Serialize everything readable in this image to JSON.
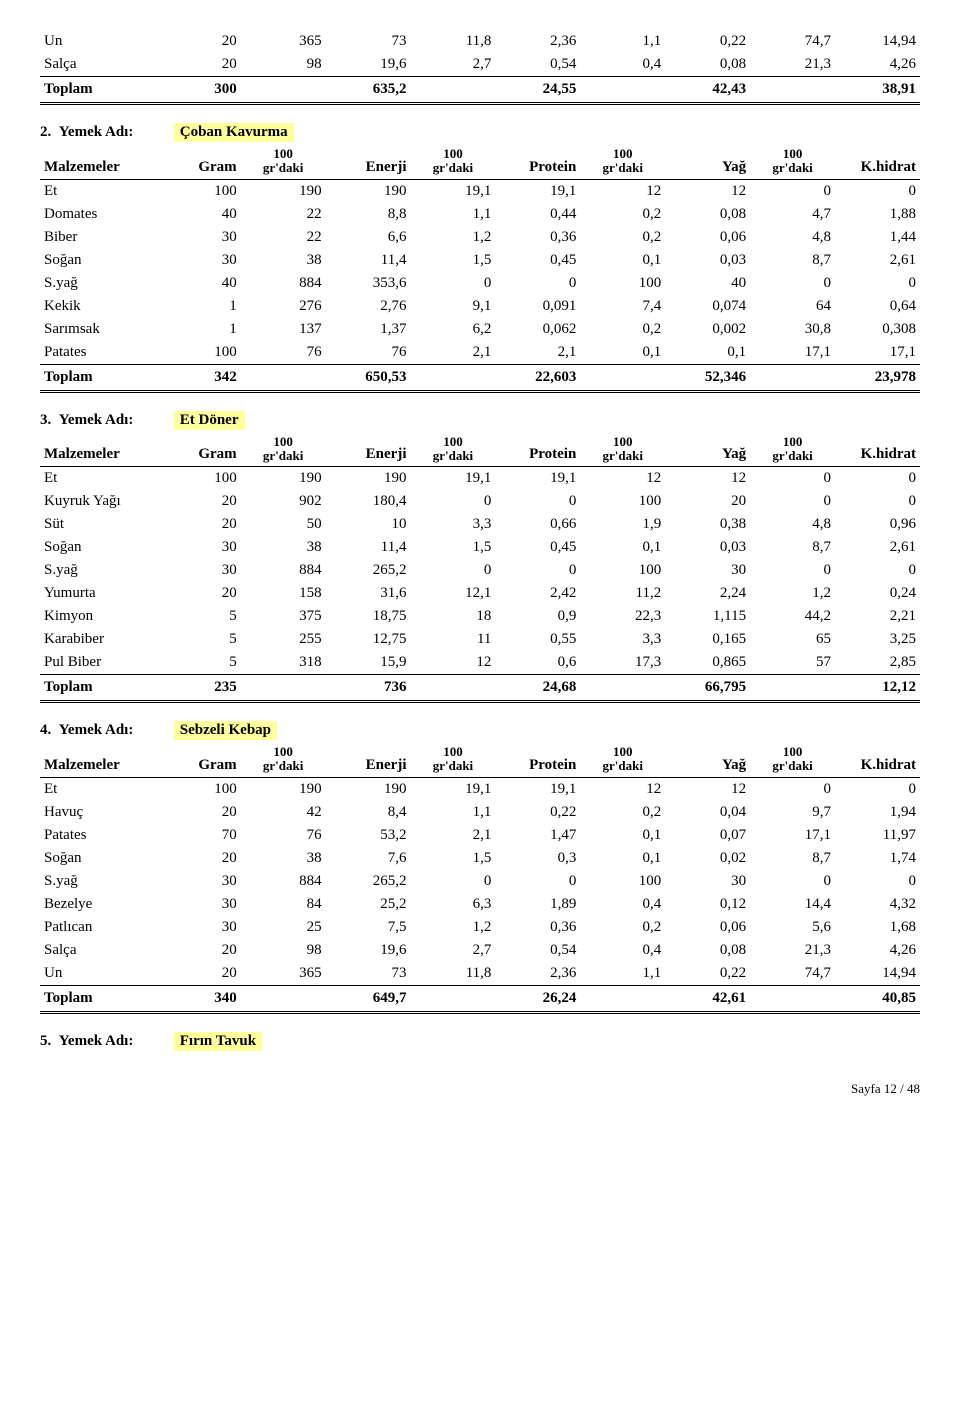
{
  "highlight_color": "#ffff9c",
  "header_labels": {
    "malzemeler": "Malzemeler",
    "gram": "Gram",
    "grdaki": "100 gr'daki",
    "enerji": "Enerji",
    "protein": "Protein",
    "yag": "Yağ",
    "khidrat": "K.hidrat"
  },
  "toplam_label": "Toplam",
  "yemek_adi_label": "Yemek Adı:",
  "top_table": {
    "rows": [
      {
        "name": "Un",
        "v": [
          "20",
          "365",
          "73",
          "11,8",
          "2,36",
          "1,1",
          "0,22",
          "74,7",
          "14,94"
        ]
      },
      {
        "name": "Salça",
        "v": [
          "20",
          "98",
          "19,6",
          "2,7",
          "0,54",
          "0,4",
          "0,08",
          "21,3",
          "4,26"
        ]
      }
    ],
    "total": {
      "gram": "300",
      "enerji": "635,2",
      "protein": "24,55",
      "yag": "42,43",
      "khidrat": "38,91"
    }
  },
  "sections": [
    {
      "num": "2.",
      "name": "Çoban Kavurma",
      "rows": [
        {
          "name": "Et",
          "v": [
            "100",
            "190",
            "190",
            "19,1",
            "19,1",
            "12",
            "12",
            "0",
            "0"
          ]
        },
        {
          "name": "Domates",
          "v": [
            "40",
            "22",
            "8,8",
            "1,1",
            "0,44",
            "0,2",
            "0,08",
            "4,7",
            "1,88"
          ]
        },
        {
          "name": "Biber",
          "v": [
            "30",
            "22",
            "6,6",
            "1,2",
            "0,36",
            "0,2",
            "0,06",
            "4,8",
            "1,44"
          ]
        },
        {
          "name": "Soğan",
          "v": [
            "30",
            "38",
            "11,4",
            "1,5",
            "0,45",
            "0,1",
            "0,03",
            "8,7",
            "2,61"
          ]
        },
        {
          "name": "S.yağ",
          "v": [
            "40",
            "884",
            "353,6",
            "0",
            "0",
            "100",
            "40",
            "0",
            "0"
          ]
        },
        {
          "name": "Kekik",
          "v": [
            "1",
            "276",
            "2,76",
            "9,1",
            "0,091",
            "7,4",
            "0,074",
            "64",
            "0,64"
          ]
        },
        {
          "name": "Sarımsak",
          "v": [
            "1",
            "137",
            "1,37",
            "6,2",
            "0,062",
            "0,2",
            "0,002",
            "30,8",
            "0,308"
          ]
        },
        {
          "name": "Patates",
          "v": [
            "100",
            "76",
            "76",
            "2,1",
            "2,1",
            "0,1",
            "0,1",
            "17,1",
            "17,1"
          ]
        }
      ],
      "total": {
        "gram": "342",
        "enerji": "650,53",
        "protein": "22,603",
        "yag": "52,346",
        "khidrat": "23,978"
      }
    },
    {
      "num": "3.",
      "name": "Et Döner",
      "rows": [
        {
          "name": "Et",
          "v": [
            "100",
            "190",
            "190",
            "19,1",
            "19,1",
            "12",
            "12",
            "0",
            "0"
          ]
        },
        {
          "name": "Kuyruk Yağı",
          "v": [
            "20",
            "902",
            "180,4",
            "0",
            "0",
            "100",
            "20",
            "0",
            "0"
          ]
        },
        {
          "name": "Süt",
          "v": [
            "20",
            "50",
            "10",
            "3,3",
            "0,66",
            "1,9",
            "0,38",
            "4,8",
            "0,96"
          ]
        },
        {
          "name": "Soğan",
          "v": [
            "30",
            "38",
            "11,4",
            "1,5",
            "0,45",
            "0,1",
            "0,03",
            "8,7",
            "2,61"
          ]
        },
        {
          "name": "S.yağ",
          "v": [
            "30",
            "884",
            "265,2",
            "0",
            "0",
            "100",
            "30",
            "0",
            "0"
          ]
        },
        {
          "name": "Yumurta",
          "v": [
            "20",
            "158",
            "31,6",
            "12,1",
            "2,42",
            "11,2",
            "2,24",
            "1,2",
            "0,24"
          ]
        },
        {
          "name": "Kimyon",
          "v": [
            "5",
            "375",
            "18,75",
            "18",
            "0,9",
            "22,3",
            "1,115",
            "44,2",
            "2,21"
          ]
        },
        {
          "name": "Karabiber",
          "v": [
            "5",
            "255",
            "12,75",
            "11",
            "0,55",
            "3,3",
            "0,165",
            "65",
            "3,25"
          ]
        },
        {
          "name": "Pul Biber",
          "v": [
            "5",
            "318",
            "15,9",
            "12",
            "0,6",
            "17,3",
            "0,865",
            "57",
            "2,85"
          ]
        }
      ],
      "total": {
        "gram": "235",
        "enerji": "736",
        "protein": "24,68",
        "yag": "66,795",
        "khidrat": "12,12"
      }
    },
    {
      "num": "4.",
      "name": "Sebzeli Kebap",
      "rows": [
        {
          "name": "Et",
          "v": [
            "100",
            "190",
            "190",
            "19,1",
            "19,1",
            "12",
            "12",
            "0",
            "0"
          ]
        },
        {
          "name": "Havuç",
          "v": [
            "20",
            "42",
            "8,4",
            "1,1",
            "0,22",
            "0,2",
            "0,04",
            "9,7",
            "1,94"
          ]
        },
        {
          "name": "Patates",
          "v": [
            "70",
            "76",
            "53,2",
            "2,1",
            "1,47",
            "0,1",
            "0,07",
            "17,1",
            "11,97"
          ]
        },
        {
          "name": "Soğan",
          "v": [
            "20",
            "38",
            "7,6",
            "1,5",
            "0,3",
            "0,1",
            "0,02",
            "8,7",
            "1,74"
          ]
        },
        {
          "name": "S.yağ",
          "v": [
            "30",
            "884",
            "265,2",
            "0",
            "0",
            "100",
            "30",
            "0",
            "0"
          ]
        },
        {
          "name": "Bezelye",
          "v": [
            "30",
            "84",
            "25,2",
            "6,3",
            "1,89",
            "0,4",
            "0,12",
            "14,4",
            "4,32"
          ]
        },
        {
          "name": "Patlıcan",
          "v": [
            "30",
            "25",
            "7,5",
            "1,2",
            "0,36",
            "0,2",
            "0,06",
            "5,6",
            "1,68"
          ]
        },
        {
          "name": "Salça",
          "v": [
            "20",
            "98",
            "19,6",
            "2,7",
            "0,54",
            "0,4",
            "0,08",
            "21,3",
            "4,26"
          ]
        },
        {
          "name": "Un",
          "v": [
            "20",
            "365",
            "73",
            "11,8",
            "2,36",
            "1,1",
            "0,22",
            "74,7",
            "14,94"
          ]
        }
      ],
      "total": {
        "gram": "340",
        "enerji": "649,7",
        "protein": "26,24",
        "yag": "42,61",
        "khidrat": "40,85"
      }
    }
  ],
  "last_section": {
    "num": "5.",
    "name": "Fırın Tavuk"
  },
  "footer": "Sayfa 12 / 48"
}
